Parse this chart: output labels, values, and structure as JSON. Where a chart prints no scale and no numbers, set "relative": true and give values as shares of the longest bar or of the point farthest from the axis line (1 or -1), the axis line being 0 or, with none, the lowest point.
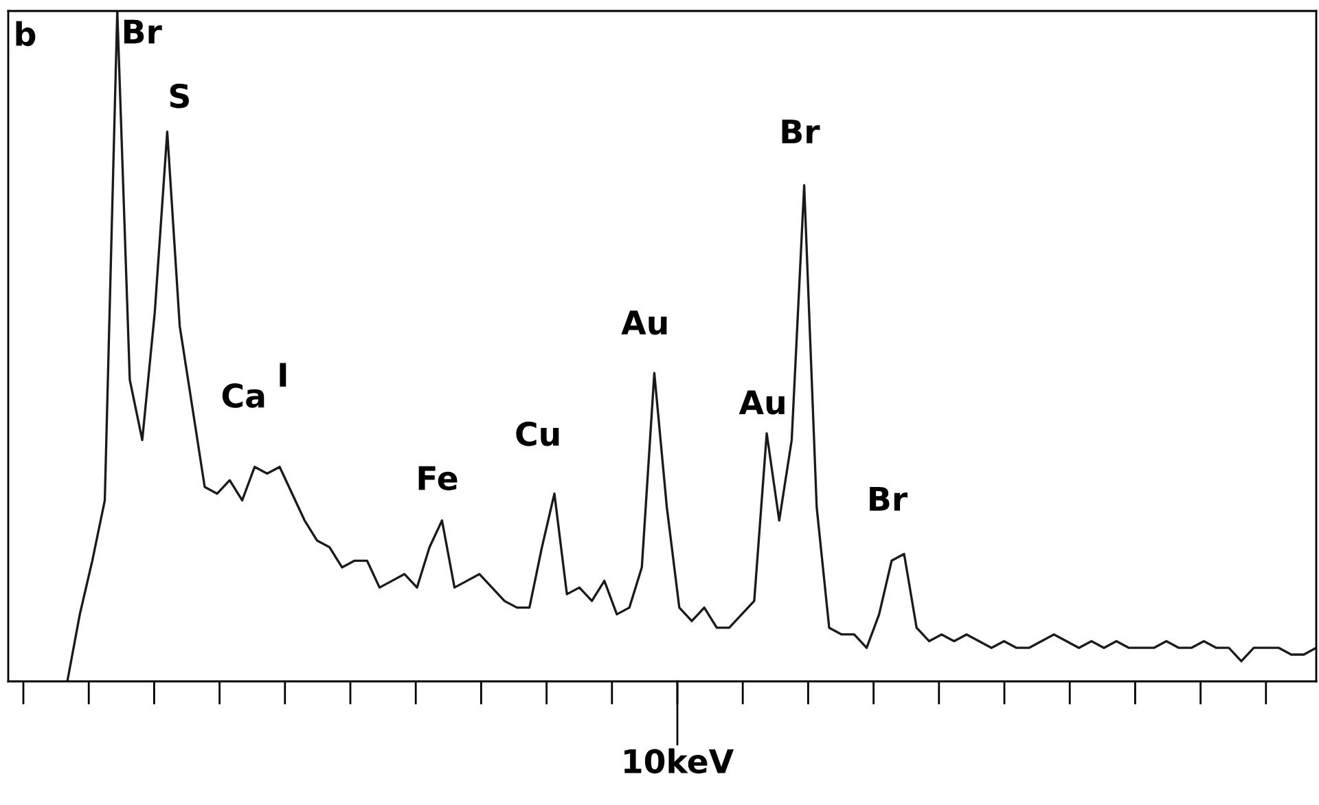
{
  "chart_data": {
    "type": "line",
    "relative": true,
    "grid": false,
    "legend": false,
    "marker": "none",
    "line_style": "solid",
    "categories": [
      null,
      null,
      null,
      null,
      null,
      null,
      null,
      null,
      null,
      null,
      null,
      null,
      null,
      null,
      null,
      null,
      null,
      null,
      null,
      null,
      null,
      null,
      null,
      null,
      null,
      null,
      null,
      null,
      null,
      null,
      null,
      null,
      null,
      null,
      null,
      null,
      null,
      null,
      null,
      null,
      null,
      null,
      null,
      null,
      null,
      null,
      null,
      null,
      null,
      null,
      null,
      null,
      null,
      null,
      null,
      null,
      null,
      null,
      null,
      null,
      null,
      null,
      null,
      null,
      null,
      null,
      null,
      null,
      null,
      null,
      null,
      null,
      null,
      null,
      null,
      null,
      null,
      null,
      null,
      null,
      null,
      null,
      null,
      null,
      null,
      null,
      null,
      null,
      null,
      null,
      null,
      null,
      null,
      null,
      null,
      null,
      null,
      null,
      null,
      null,
      null
    ],
    "series": [
      {
        "color": "#1a1a1a",
        "values": [
          0,
          0.1,
          0.18,
          0.27,
          1.0,
          0.45,
          0.36,
          0.55,
          0.82,
          0.53,
          0.41,
          0.29,
          0.28,
          0.3,
          0.27,
          0.32,
          0.31,
          0.32,
          0.28,
          0.24,
          0.21,
          0.2,
          0.17,
          0.18,
          0.18,
          0.14,
          0.15,
          0.16,
          0.14,
          0.2,
          0.24,
          0.14,
          0.15,
          0.16,
          0.14,
          0.12,
          0.11,
          0.11,
          0.2,
          0.28,
          0.13,
          0.14,
          0.12,
          0.15,
          0.1,
          0.11,
          0.17,
          0.46,
          0.26,
          0.11,
          0.09,
          0.11,
          0.08,
          0.08,
          0.1,
          0.12,
          0.37,
          0.24,
          0.36,
          0.74,
          0.26,
          0.08,
          0.07,
          0.07,
          0.05,
          0.1,
          0.18,
          0.19,
          0.08,
          0.06,
          0.07,
          0.06,
          0.07,
          0.06,
          0.05,
          0.06,
          0.05,
          0.05,
          0.06,
          0.07,
          0.06,
          0.05,
          0.06,
          0.05,
          0.06,
          0.05,
          0.05,
          0.05,
          0.06,
          0.05,
          0.05,
          0.06,
          0.05,
          0.05,
          0.03,
          0.05,
          0.05,
          0.05,
          0.04,
          0.04,
          0.05
        ]
      }
    ],
    "annotations": [
      "b",
      "10keV",
      "Br",
      "S",
      "Ca",
      "I",
      "Fe",
      "Cu",
      "Au",
      "Au",
      "Br",
      "Br"
    ]
  }
}
